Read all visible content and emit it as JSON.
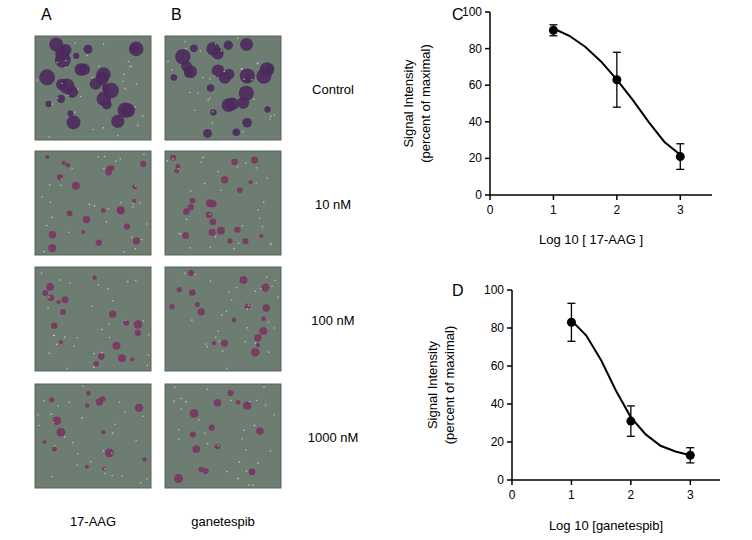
{
  "figure": {
    "panel_labels": [
      "A",
      "B"
    ],
    "column_labels": [
      "17-AAG",
      "ganetespib"
    ],
    "row_labels": [
      "Control",
      "10 nM",
      "100 nM",
      "1000 nM"
    ]
  },
  "chart_data": [
    {
      "type": "line",
      "panel": "C",
      "xlabel": "Log 10 [ 17-AAG ]",
      "ylabel": "Signal Intensity\n(percent of maximal)",
      "xlim": [
        0,
        3.5
      ],
      "xticks": [
        0,
        1,
        2,
        3
      ],
      "ylim": [
        0,
        100
      ],
      "yticks": [
        0,
        20,
        40,
        60,
        80,
        100
      ],
      "series": [
        {
          "type": "scatter",
          "marker": "circle",
          "color": "#000000",
          "x": [
            1,
            2,
            3
          ],
          "values": [
            90,
            63,
            21
          ],
          "errors": [
            3,
            15,
            7
          ]
        },
        {
          "type": "line",
          "line_style": "solid",
          "color": "#000000",
          "x": [
            1,
            1.25,
            1.5,
            1.75,
            2,
            2.25,
            2.5,
            2.75,
            3
          ],
          "values": [
            91,
            87,
            81,
            73,
            63,
            52,
            40,
            29,
            22
          ]
        }
      ]
    },
    {
      "type": "line",
      "panel": "D",
      "xlabel": "Log 10 [ganetespib]",
      "ylabel": "Signal Intensity\n(percent of maximal)",
      "xlim": [
        0,
        3.5
      ],
      "xticks": [
        0,
        1,
        2,
        3
      ],
      "ylim": [
        0,
        100
      ],
      "yticks": [
        0,
        20,
        40,
        60,
        80,
        100
      ],
      "series": [
        {
          "type": "scatter",
          "marker": "circle",
          "color": "#000000",
          "x": [
            1,
            2,
            3
          ],
          "values": [
            83,
            31,
            13
          ],
          "errors": [
            10,
            8,
            4
          ]
        },
        {
          "type": "line",
          "line_style": "solid",
          "color": "#000000",
          "x": [
            1,
            1.25,
            1.5,
            1.75,
            2,
            2.25,
            2.5,
            2.75,
            3
          ],
          "values": [
            84,
            76,
            63,
            47,
            33,
            24,
            18,
            15,
            13
          ]
        }
      ]
    }
  ]
}
